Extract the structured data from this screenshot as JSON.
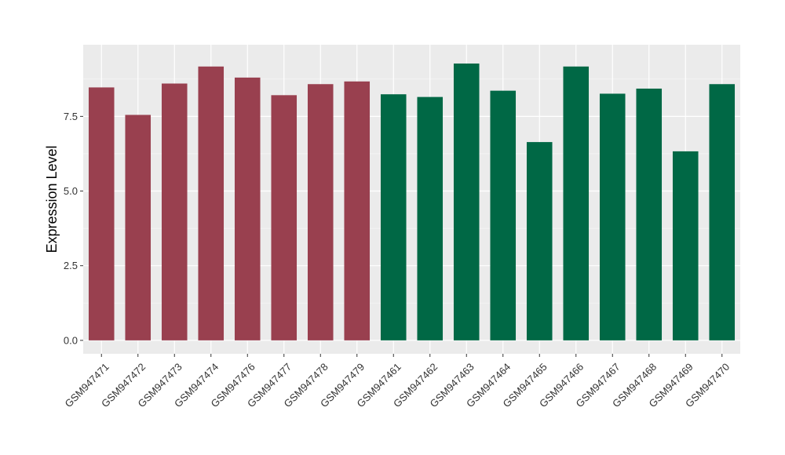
{
  "chart_data": {
    "type": "bar",
    "ylabel": "Expression Level",
    "xlabel": "",
    "ylim": [
      -0.45,
      9.9
    ],
    "yticks": [
      0.0,
      2.5,
      5.0,
      7.5
    ],
    "ytick_labels": [
      "0.0",
      "2.5",
      "5.0",
      "7.5"
    ],
    "grid": true,
    "legend": "none",
    "categories": [
      "GSM947471",
      "GSM947472",
      "GSM947473",
      "GSM947474",
      "GSM947476",
      "GSM947477",
      "GSM947478",
      "GSM947479",
      "GSM947461",
      "GSM947462",
      "GSM947463",
      "GSM947464",
      "GSM947465",
      "GSM947466",
      "GSM947467",
      "GSM947468",
      "GSM947469",
      "GSM947470"
    ],
    "values": [
      8.47,
      7.55,
      8.6,
      9.17,
      8.8,
      8.21,
      8.58,
      8.67,
      8.24,
      8.15,
      9.27,
      8.36,
      6.64,
      9.17,
      8.26,
      8.43,
      6.33,
      8.58
    ],
    "bar_colors": [
      "#99404f",
      "#99404f",
      "#99404f",
      "#99404f",
      "#99404f",
      "#99404f",
      "#99404f",
      "#99404f",
      "#006845",
      "#006845",
      "#006845",
      "#006845",
      "#006845",
      "#006845",
      "#006845",
      "#006845",
      "#006845",
      "#006845"
    ]
  },
  "colors": {
    "panel_background": "#ebebeb",
    "grid_major": "#ffffff",
    "grid_minor": "#f5f5f5"
  }
}
